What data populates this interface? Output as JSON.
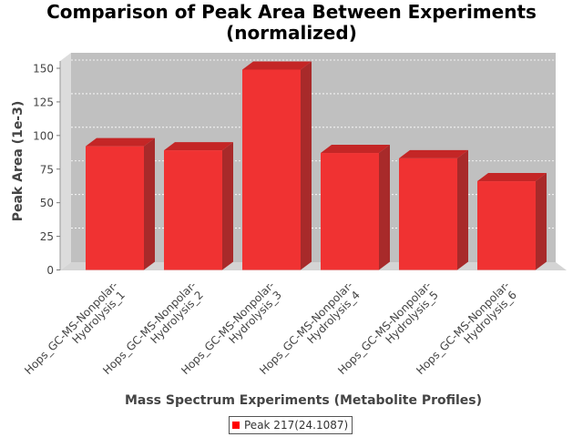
{
  "chart_data": {
    "type": "bar",
    "title_lines": [
      "Comparison of Peak Area Between Experiments",
      "(normalized)"
    ],
    "xlabel": "Mass Spectrum Experiments (Metabolite Profiles)",
    "ylabel": "Peak Area (1e-3)",
    "categories": [
      [
        "Hops_GC-MS-Nonpolar-",
        "Hydrolysis_1"
      ],
      [
        "Hops_GC-MS-Nonpolar-",
        "Hydrolysis_2"
      ],
      [
        "Hops_GC-MS-Nonpolar-",
        "Hydrolysis_3"
      ],
      [
        "Hops_GC-MS-Nonpolar-",
        "Hydrolysis_4"
      ],
      [
        "Hops_GC-MS-Nonpolar-",
        "Hydrolysis_5"
      ],
      [
        "Hops_GC-MS-Nonpolar-",
        "Hydrolysis_6"
      ]
    ],
    "series": [
      {
        "name": "Peak 217(24.1087)",
        "values": [
          92,
          89,
          149,
          87,
          83,
          66
        ],
        "color": "#ff0000"
      }
    ],
    "yticks": [
      0,
      25,
      50,
      75,
      100,
      125,
      150
    ],
    "ylim": [
      0,
      158
    ],
    "grid": true,
    "legend_position": "bottom-center",
    "style": "3d-bar",
    "plot_background": "#c0c0c0"
  }
}
